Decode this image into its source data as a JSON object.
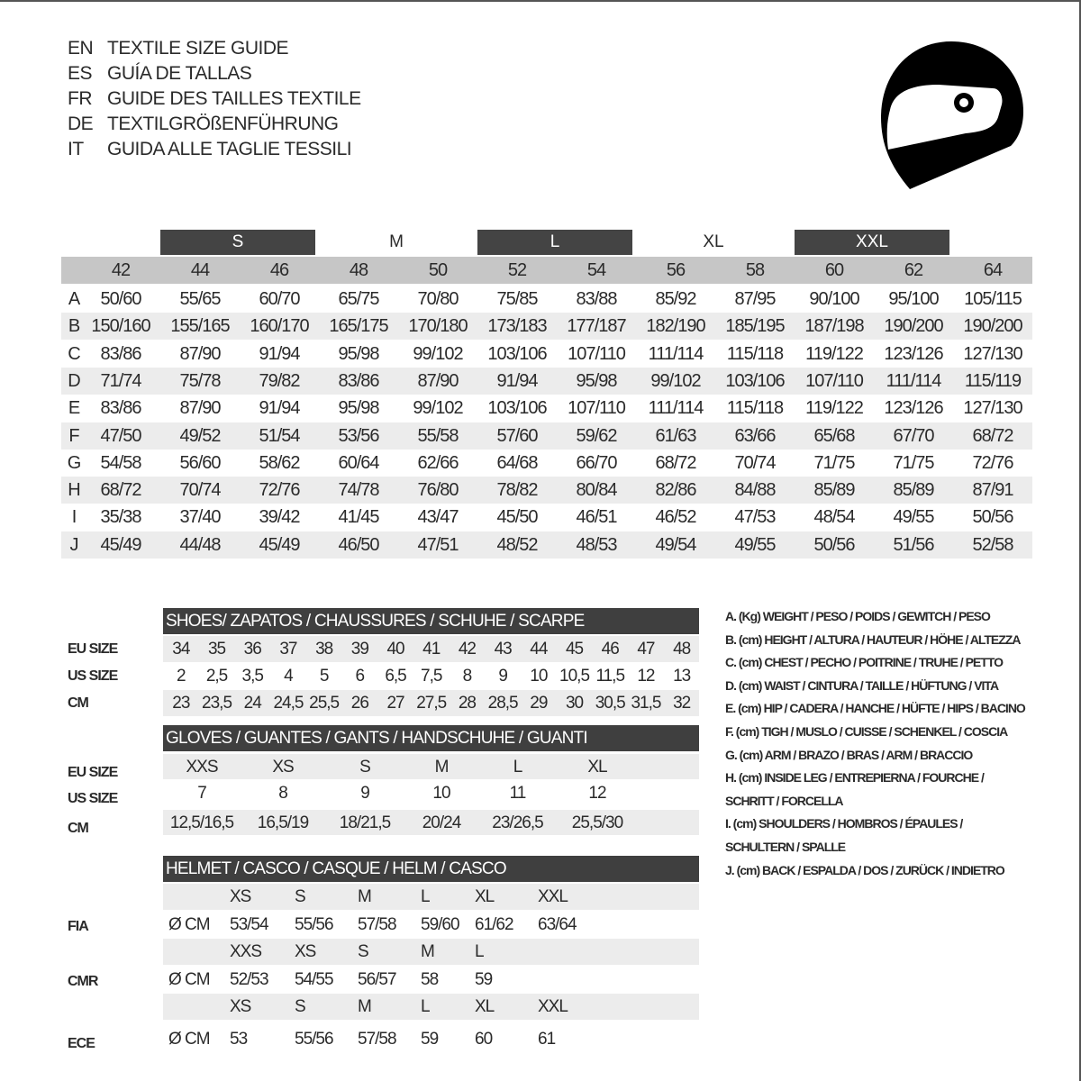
{
  "titles": [
    {
      "code": "EN",
      "text": "TEXTILE SIZE GUIDE"
    },
    {
      "code": "ES",
      "text": "GUÍA DE TALLAS"
    },
    {
      "code": "FR",
      "text": "GUIDE DES TAILLES TEXTILE"
    },
    {
      "code": "DE",
      "text": "TEXTILGRÖßENFÜHRUNG"
    },
    {
      "code": "IT",
      "text": "GUIDA ALLE TAGLIE TESSILI"
    }
  ],
  "icon": "helmet-icon",
  "colors": {
    "dark_bar": "#3f3f3f",
    "header_gray": "#c6c6c6",
    "row_alt": "#ececec"
  },
  "main_table": {
    "size_groups": [
      {
        "label": "S",
        "dark": true
      },
      {
        "label": "M",
        "dark": false
      },
      {
        "label": "L",
        "dark": true
      },
      {
        "label": "XL",
        "dark": false
      },
      {
        "label": "XXL",
        "dark": true
      }
    ],
    "sizes": [
      "42",
      "44",
      "46",
      "48",
      "50",
      "52",
      "54",
      "56",
      "58",
      "60",
      "62",
      "64"
    ],
    "rows": [
      {
        "label": "A",
        "values": [
          "50/60",
          "55/65",
          "60/70",
          "65/75",
          "70/80",
          "75/85",
          "83/88",
          "85/92",
          "87/95",
          "90/100",
          "95/100",
          "105/115"
        ]
      },
      {
        "label": "B",
        "values": [
          "150/160",
          "155/165",
          "160/170",
          "165/175",
          "170/180",
          "173/183",
          "177/187",
          "182/190",
          "185/195",
          "187/198",
          "190/200",
          "190/200"
        ]
      },
      {
        "label": "C",
        "values": [
          "83/86",
          "87/90",
          "91/94",
          "95/98",
          "99/102",
          "103/106",
          "107/110",
          "111/114",
          "115/118",
          "119/122",
          "123/126",
          "127/130"
        ]
      },
      {
        "label": "D",
        "values": [
          "71/74",
          "75/78",
          "79/82",
          "83/86",
          "87/90",
          "91/94",
          "95/98",
          "99/102",
          "103/106",
          "107/110",
          "111/114",
          "115/119"
        ]
      },
      {
        "label": "E",
        "values": [
          "83/86",
          "87/90",
          "91/94",
          "95/98",
          "99/102",
          "103/106",
          "107/110",
          "111/114",
          "115/118",
          "119/122",
          "123/126",
          "127/130"
        ]
      },
      {
        "label": "F",
        "values": [
          "47/50",
          "49/52",
          "51/54",
          "53/56",
          "55/58",
          "57/60",
          "59/62",
          "61/63",
          "63/66",
          "65/68",
          "67/70",
          "68/72"
        ]
      },
      {
        "label": "G",
        "values": [
          "54/58",
          "56/60",
          "58/62",
          "60/64",
          "62/66",
          "64/68",
          "66/70",
          "68/72",
          "70/74",
          "71/75",
          "71/75",
          "72/76"
        ]
      },
      {
        "label": "H",
        "values": [
          "68/72",
          "70/74",
          "72/76",
          "74/78",
          "76/80",
          "78/82",
          "80/84",
          "82/86",
          "84/88",
          "85/89",
          "85/89",
          "87/91"
        ]
      },
      {
        "label": "I",
        "values": [
          "35/38",
          "37/40",
          "39/42",
          "41/45",
          "43/47",
          "45/50",
          "46/51",
          "46/52",
          "47/53",
          "48/54",
          "49/55",
          "50/56"
        ]
      },
      {
        "label": "J",
        "values": [
          "45/49",
          "44/48",
          "45/49",
          "46/50",
          "47/51",
          "48/52",
          "48/53",
          "49/54",
          "49/55",
          "50/56",
          "51/56",
          "52/58"
        ]
      }
    ]
  },
  "shoes": {
    "title": "SHOES/ ZAPATOS / CHAUSSURES / SCHUHE / SCARPE",
    "rows": [
      {
        "label": "EU SIZE",
        "values": [
          "34",
          "35",
          "36",
          "37",
          "38",
          "39",
          "40",
          "41",
          "42",
          "43",
          "44",
          "45",
          "46",
          "47",
          "48"
        ]
      },
      {
        "label": "US SIZE",
        "values": [
          "2",
          "2,5",
          "3,5",
          "4",
          "5",
          "6",
          "6,5",
          "7,5",
          "8",
          "9",
          "10",
          "10,5",
          "11,5",
          "12",
          "13"
        ]
      },
      {
        "label": "CM",
        "values": [
          "23",
          "23,5",
          "24",
          "24,5",
          "25,5",
          "26",
          "27",
          "27,5",
          "28",
          "28,5",
          "29",
          "30",
          "30,5",
          "31,5",
          "32"
        ]
      }
    ]
  },
  "gloves": {
    "title": "GLOVES / GUANTES / GANTS / HANDSCHUHE / GUANTI",
    "rows": [
      {
        "label": "EU SIZE",
        "values": [
          "XXS",
          "XS",
          "S",
          "M",
          "L",
          "XL"
        ]
      },
      {
        "label": "US SIZE",
        "values": [
          "7",
          "8",
          "9",
          "10",
          "11",
          "12"
        ]
      },
      {
        "label": "CM",
        "values": [
          "12,5/16,5",
          "16,5/19",
          "18/21,5",
          "20/24",
          "23/26,5",
          "25,5/30"
        ]
      }
    ]
  },
  "helmet": {
    "title": "HELMET / CASCO / CASQUE / HELM / CASCO",
    "unit": "Ø CM",
    "groups": [
      {
        "label": "FIA",
        "sizes": [
          "XS",
          "S",
          "M",
          "L",
          "XL",
          "XXL"
        ],
        "values": [
          "53/54",
          "55/56",
          "57/58",
          "59/60",
          "61/62",
          "63/64"
        ]
      },
      {
        "label": "CMR",
        "sizes": [
          "XXS",
          "XS",
          "S",
          "M",
          "L"
        ],
        "values": [
          "52/53",
          "54/55",
          "56/57",
          "58",
          "59"
        ]
      },
      {
        "label": "ECE",
        "sizes": [
          "XS",
          "S",
          "M",
          "L",
          "XL",
          "XXL"
        ],
        "values": [
          "53",
          "55/56",
          "57/58",
          "59",
          "60",
          "61"
        ]
      }
    ]
  },
  "legend": [
    "A. (Kg) WEIGHT / PESO / POIDS / GEWITCH / PESO",
    "B. (cm) HEIGHT / ALTURA / HAUTEUR / HÖHE / ALTEZZA",
    "C. (cm) CHEST / PECHO / POITRINE / TRUHE / PETTO",
    "D. (cm) WAIST / CINTURA / TAILLE / HÜFTUNG / VITA",
    "E. (cm) HIP / CADERA / HANCHE / HÜFTE / HIPS /  BACINO",
    "F.  (cm) TIGH / MUSLO / CUISSE / SCHENKEL / COSCIA",
    "G. (cm) ARM  / BRAZO / BRAS / ARM / BRACCIO",
    "H. (cm) INSIDE LEG / ENTREPIERNA / FOURCHE /",
    "SCHRITT / FORCELLA",
    "I.  (cm) SHOULDERS / HOMBROS / ÉPAULES /",
    "SCHULTERN / SPALLE",
    "J. (cm) BACK / ESPALDA / DOS / ZURÜCK / INDIETRO"
  ]
}
